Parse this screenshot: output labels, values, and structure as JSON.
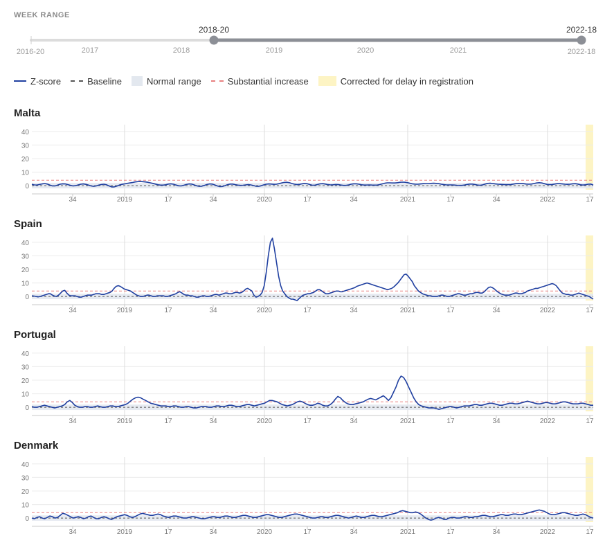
{
  "week_range": {
    "title": "WEEK RANGE",
    "start_label": "2016-20",
    "end_label": "2022-18",
    "selected_start": "2018-20",
    "selected_end": "2022-18",
    "year_labels": [
      "2017",
      "2018",
      "2019",
      "2020",
      "2021"
    ]
  },
  "legend": {
    "zscore": "Z-score",
    "baseline": "Baseline",
    "normal_range": "Normal range",
    "substantial_increase": "Substantial increase",
    "corrected": "Corrected for delay in registration"
  },
  "colors": {
    "zscore": "#1f3fa0",
    "baseline": "#555555",
    "normal_range": "#e3e8ef",
    "substantial": "#e88080",
    "corrected": "#fdf4c4",
    "slider_selected": "#8c8f96",
    "slider_track": "#dcdcdc"
  },
  "chart_data": [
    {
      "type": "line",
      "title": "Malta",
      "ylim": [
        -3,
        43
      ],
      "yticks": [
        0,
        10,
        20,
        30,
        40
      ],
      "x_tick_labels": [
        "34",
        "2019",
        "17",
        "34",
        "2020",
        "17",
        "34",
        "2021",
        "17",
        "34",
        "2022",
        "17"
      ],
      "baseline": 0,
      "normal_range": [
        -2,
        2
      ],
      "substantial_increase": 4,
      "corrected_weeks": "2022-17 to 2022-18",
      "series": [
        {
          "name": "Z-score",
          "x_week_start": "2018-20",
          "x_week_end": "2022-18",
          "values": [
            1.0,
            0.6,
            0.5,
            0.9,
            1.3,
            1.6,
            1.2,
            0.5,
            -0.2,
            -0.2,
            0.4,
            1.1,
            1.4,
            1.3,
            0.8,
            0.2,
            -0.2,
            0.0,
            0.6,
            1.1,
            1.3,
            1.0,
            0.4,
            -0.2,
            -0.5,
            -0.2,
            0.4,
            0.9,
            1.1,
            0.7,
            -0.2,
            -0.9,
            -0.9,
            -0.3,
            0.5,
            1.0,
            1.3,
            1.7,
            2.0,
            2.3,
            2.7,
            3.0,
            3.1,
            3.0,
            2.8,
            2.5,
            2.1,
            1.7,
            1.2,
            0.7,
            0.4,
            0.4,
            0.7,
            1.2,
            1.4,
            1.1,
            0.5,
            -0.1,
            -0.2,
            0.3,
            0.9,
            1.3,
            1.2,
            0.6,
            -0.1,
            -0.5,
            -0.4,
            0.2,
            0.9,
            1.3,
            1.2,
            0.6,
            -0.2,
            -0.7,
            -0.6,
            0.0,
            0.8,
            1.2,
            1.2,
            0.8,
            0.4,
            0.2,
            0.3,
            0.6,
            0.8,
            0.6,
            0.1,
            -0.4,
            -0.5,
            -0.1,
            0.6,
            1.1,
            1.3,
            1.2,
            1.0,
            1.1,
            1.5,
            2.0,
            2.4,
            2.5,
            2.2,
            1.6,
            1.1,
            0.8,
            1.0,
            1.4,
            1.7,
            1.4,
            0.8,
            0.3,
            0.4,
            0.9,
            1.4,
            1.5,
            1.2,
            0.8,
            0.6,
            0.7,
            0.9,
            0.8,
            0.5,
            0.2,
            0.2,
            0.6,
            1.1,
            1.4,
            1.4,
            1.1,
            0.7,
            0.5,
            0.5,
            0.6,
            0.5,
            0.4,
            0.4,
            0.8,
            1.3,
            1.8,
            2.1,
            2.1,
            2.0,
            2.0,
            2.2,
            2.5,
            2.6,
            2.5,
            2.2,
            1.7,
            1.3,
            1.1,
            1.1,
            1.3,
            1.5,
            1.6,
            1.6,
            1.7,
            1.8,
            1.7,
            1.5,
            1.1,
            0.8,
            0.6,
            0.6,
            0.6,
            0.5,
            0.3,
            0.2,
            0.2,
            0.5,
            0.9,
            1.2,
            1.2,
            0.9,
            0.5,
            0.3,
            0.6,
            1.2,
            1.7,
            1.8,
            1.6,
            1.3,
            1.1,
            1.0,
            0.9,
            0.8,
            0.8,
            0.9,
            1.2,
            1.5,
            1.7,
            1.7,
            1.5,
            1.2,
            1.1,
            1.2,
            1.6,
            2.0,
            2.2,
            2.0,
            1.5,
            1.0,
            0.8,
            0.9,
            1.2,
            1.5,
            1.5,
            1.3,
            1.1,
            1.0,
            1.1,
            1.4,
            1.5,
            1.2,
            0.7,
            0.5,
            0.7,
            1.1,
            1.2,
            0.4
          ]
        }
      ]
    },
    {
      "type": "line",
      "title": "Spain",
      "ylim": [
        -3,
        43
      ],
      "yticks": [
        0,
        10,
        20,
        30,
        40
      ],
      "x_tick_labels": [
        "34",
        "2019",
        "17",
        "34",
        "2020",
        "17",
        "34",
        "2021",
        "17",
        "34",
        "2022",
        "17"
      ],
      "baseline": 0,
      "normal_range": [
        -2,
        2
      ],
      "substantial_increase": 4,
      "corrected_weeks": "2022-17 to 2022-18",
      "series": [
        {
          "name": "Z-score",
          "x_week_start": "2018-20",
          "x_week_end": "2022-18",
          "values": [
            0.5,
            0.3,
            0.0,
            -0.3,
            0.0,
            0.5,
            1.0,
            1.5,
            2.0,
            2.0,
            1.0,
            0.3,
            0.0,
            1.0,
            2.5,
            4.0,
            4.5,
            2.5,
            1.0,
            0.5,
            0.5,
            0.5,
            0.0,
            -0.5,
            -0.5,
            0.0,
            0.5,
            1.0,
            1.0,
            1.0,
            1.5,
            2.0,
            2.0,
            2.0,
            1.5,
            1.5,
            2.0,
            2.5,
            3.0,
            4.0,
            6.0,
            7.5,
            8.0,
            7.5,
            6.5,
            5.5,
            5.0,
            4.5,
            4.0,
            3.0,
            2.0,
            1.0,
            0.5,
            0.0,
            0.0,
            0.5,
            1.0,
            1.0,
            0.5,
            0.0,
            0.0,
            0.5,
            0.5,
            0.5,
            0.5,
            0.0,
            0.0,
            0.5,
            1.0,
            1.5,
            2.0,
            3.0,
            3.5,
            2.5,
            1.5,
            1.0,
            1.0,
            0.5,
            0.5,
            0.0,
            -0.5,
            -0.5,
            0.0,
            0.5,
            0.5,
            0.0,
            0.0,
            0.5,
            1.0,
            1.5,
            1.5,
            1.0,
            1.5,
            2.0,
            2.5,
            2.5,
            2.0,
            2.0,
            2.5,
            3.0,
            3.0,
            2.5,
            3.0,
            4.0,
            5.5,
            6.0,
            5.0,
            4.0,
            1.0,
            -0.5,
            0.0,
            1.0,
            3.0,
            8.0,
            18.0,
            30.0,
            40.0,
            43.0,
            35.0,
            25.0,
            15.0,
            8.0,
            4.0,
            2.0,
            0.0,
            -1.0,
            -2.0,
            -2.0,
            -2.5,
            -3.0,
            -1.5,
            0.0,
            1.0,
            1.5,
            2.0,
            2.0,
            2.5,
            3.0,
            4.0,
            5.0,
            5.0,
            4.0,
            3.0,
            2.0,
            2.0,
            2.5,
            3.0,
            3.5,
            4.0,
            4.0,
            3.5,
            3.5,
            4.0,
            4.5,
            5.0,
            5.5,
            6.0,
            6.5,
            7.5,
            8.0,
            8.5,
            9.0,
            9.5,
            10.0,
            9.5,
            9.0,
            8.5,
            8.0,
            7.5,
            7.0,
            6.5,
            6.0,
            5.5,
            5.0,
            5.5,
            6.0,
            7.0,
            8.5,
            10.0,
            12.0,
            14.0,
            16.0,
            16.5,
            15.0,
            13.0,
            11.0,
            8.0,
            6.0,
            4.0,
            3.0,
            2.0,
            1.5,
            1.0,
            0.5,
            0.5,
            0.0,
            0.0,
            0.0,
            0.5,
            1.0,
            1.0,
            0.5,
            0.0,
            0.0,
            0.5,
            1.0,
            1.5,
            2.0,
            2.0,
            1.5,
            1.0,
            1.0,
            1.5,
            2.0,
            2.0,
            2.5,
            3.0,
            3.0,
            2.5,
            2.5,
            3.5,
            5.0,
            6.5,
            7.0,
            6.5,
            5.5,
            4.0,
            3.0,
            2.0,
            1.5,
            1.0,
            1.0,
            1.0,
            1.5,
            2.0,
            2.5,
            2.5,
            2.0,
            2.0,
            2.5,
            3.0,
            4.0,
            4.5,
            5.0,
            5.5,
            6.0,
            6.0,
            6.5,
            7.0,
            7.5,
            8.0,
            8.5,
            9.0,
            9.5,
            9.0,
            8.0,
            6.0,
            4.0,
            2.5,
            2.0,
            1.5,
            1.5,
            1.0,
            1.0,
            1.5,
            2.0,
            2.5,
            2.0,
            1.5,
            1.0,
            0.5,
            0.0,
            -1.0,
            -2.0
          ]
        }
      ]
    },
    {
      "type": "line",
      "title": "Portugal",
      "ylim": [
        -3,
        43
      ],
      "yticks": [
        0,
        10,
        20,
        30,
        40
      ],
      "x_tick_labels": [
        "34",
        "2019",
        "17",
        "34",
        "2020",
        "17",
        "34",
        "2021",
        "17",
        "34",
        "2022",
        "17"
      ],
      "baseline": 0,
      "normal_range": [
        -2,
        2
      ],
      "substantial_increase": 4,
      "corrected_weeks": "2022-17 to 2022-18",
      "series": [
        {
          "name": "Z-score",
          "x_week_start": "2018-20",
          "x_week_end": "2022-18",
          "values": [
            0.5,
            0.0,
            0.0,
            0.5,
            1.0,
            1.5,
            1.0,
            0.5,
            0.0,
            -0.5,
            0.0,
            0.5,
            1.0,
            2.0,
            4.0,
            5.0,
            3.5,
            1.5,
            0.5,
            0.0,
            0.0,
            0.5,
            0.5,
            0.0,
            0.0,
            0.5,
            1.0,
            0.5,
            0.0,
            0.0,
            0.5,
            1.0,
            1.0,
            0.5,
            0.5,
            1.0,
            1.5,
            2.0,
            3.0,
            4.5,
            6.0,
            7.0,
            7.5,
            7.0,
            6.0,
            5.0,
            4.0,
            3.0,
            2.5,
            2.0,
            1.5,
            1.0,
            1.0,
            1.0,
            0.5,
            0.5,
            1.0,
            1.0,
            0.5,
            0.0,
            0.0,
            0.5,
            0.5,
            0.0,
            -0.5,
            -0.5,
            0.0,
            0.5,
            0.5,
            0.5,
            0.0,
            0.0,
            0.5,
            1.0,
            1.0,
            0.5,
            0.5,
            1.0,
            1.5,
            1.5,
            1.0,
            0.5,
            0.5,
            1.0,
            1.5,
            2.0,
            2.0,
            1.5,
            1.0,
            1.5,
            2.0,
            2.5,
            3.0,
            4.0,
            5.0,
            5.0,
            4.5,
            4.0,
            3.0,
            2.0,
            1.5,
            1.0,
            1.5,
            2.0,
            3.0,
            4.0,
            4.5,
            4.0,
            3.0,
            2.0,
            1.5,
            1.5,
            2.0,
            3.0,
            2.5,
            1.5,
            1.0,
            1.0,
            2.0,
            3.5,
            6.0,
            8.0,
            7.0,
            5.0,
            3.5,
            2.5,
            2.0,
            2.0,
            2.5,
            3.0,
            3.5,
            4.0,
            5.0,
            6.0,
            6.5,
            6.0,
            5.5,
            6.5,
            7.5,
            8.5,
            7.0,
            5.0,
            7.0,
            11.0,
            15.0,
            20.0,
            23.0,
            22.0,
            19.0,
            15.0,
            11.0,
            7.0,
            4.0,
            2.0,
            1.0,
            0.5,
            0.0,
            -0.5,
            -0.5,
            -0.5,
            -1.0,
            -1.5,
            -1.0,
            -0.5,
            0.0,
            0.5,
            0.5,
            0.0,
            -0.5,
            0.0,
            0.5,
            1.0,
            1.0,
            1.0,
            1.5,
            2.0,
            2.0,
            1.5,
            1.5,
            2.0,
            2.5,
            3.0,
            3.0,
            2.5,
            2.0,
            1.5,
            1.5,
            2.0,
            2.5,
            3.0,
            3.0,
            2.5,
            2.5,
            3.0,
            3.5,
            4.0,
            4.5,
            4.0,
            3.5,
            3.0,
            2.5,
            2.5,
            3.0,
            3.5,
            3.5,
            3.0,
            2.5,
            2.5,
            3.0,
            3.5,
            4.0,
            4.0,
            3.5,
            3.0,
            2.5,
            2.5,
            2.5,
            3.0,
            3.0,
            2.5,
            2.0,
            1.5,
            1.5
          ]
        }
      ]
    },
    {
      "type": "line",
      "title": "Denmark",
      "ylim": [
        -3,
        43
      ],
      "yticks": [
        0,
        10,
        20,
        30,
        40
      ],
      "x_tick_labels": [
        "34",
        "2019",
        "17",
        "34",
        "2020",
        "17",
        "34",
        "2021",
        "17",
        "34",
        "2022",
        "17"
      ],
      "baseline": 0,
      "normal_range": [
        -2,
        2
      ],
      "substantial_increase": 4,
      "corrected_weeks": "2022-17 to 2022-18",
      "series": [
        {
          "name": "Z-score",
          "x_week_start": "2018-20",
          "x_week_end": "2022-18",
          "values": [
            0.0,
            -0.5,
            0.5,
            1.0,
            0.0,
            -0.5,
            0.5,
            1.5,
            1.0,
            0.0,
            0.5,
            2.0,
            3.5,
            3.0,
            2.0,
            1.0,
            0.0,
            0.5,
            1.0,
            0.5,
            -0.5,
            0.0,
            1.0,
            1.5,
            0.5,
            -0.5,
            -0.5,
            0.5,
            1.0,
            0.5,
            -0.5,
            -1.0,
            0.0,
            1.0,
            1.5,
            2.0,
            2.5,
            2.0,
            1.0,
            0.5,
            1.0,
            2.0,
            3.0,
            3.5,
            3.0,
            2.5,
            2.0,
            2.0,
            2.5,
            3.0,
            2.5,
            1.5,
            1.0,
            0.5,
            1.0,
            1.5,
            1.5,
            1.0,
            0.5,
            0.0,
            0.0,
            0.5,
            1.0,
            1.0,
            0.5,
            0.0,
            -0.5,
            -0.5,
            0.0,
            0.5,
            1.0,
            1.0,
            0.5,
            0.5,
            1.0,
            1.5,
            1.5,
            1.0,
            0.5,
            0.5,
            1.0,
            1.5,
            2.0,
            2.0,
            1.5,
            1.0,
            0.5,
            0.5,
            1.0,
            1.5,
            2.0,
            2.5,
            2.5,
            2.0,
            1.5,
            1.0,
            0.5,
            0.5,
            1.0,
            1.5,
            2.0,
            2.5,
            3.0,
            3.0,
            2.5,
            2.0,
            1.5,
            1.0,
            0.5,
            0.0,
            0.0,
            0.5,
            1.0,
            1.0,
            0.5,
            0.5,
            1.0,
            1.5,
            2.0,
            2.0,
            1.5,
            1.0,
            0.5,
            0.0,
            0.5,
            1.0,
            1.5,
            1.0,
            0.5,
            0.5,
            1.0,
            1.5,
            2.0,
            2.0,
            1.5,
            1.0,
            1.0,
            1.5,
            2.0,
            2.5,
            3.0,
            3.5,
            4.0,
            5.0,
            5.5,
            5.0,
            4.5,
            4.0,
            4.0,
            4.5,
            4.0,
            3.0,
            1.5,
            0.0,
            -1.0,
            -1.5,
            -1.0,
            0.0,
            0.5,
            0.0,
            -1.0,
            -1.0,
            0.0,
            0.5,
            0.5,
            0.0,
            0.0,
            0.5,
            1.0,
            1.0,
            0.5,
            0.5,
            1.0,
            1.0,
            1.5,
            2.0,
            2.0,
            1.5,
            1.0,
            1.0,
            1.5,
            2.0,
            2.5,
            2.5,
            2.0,
            2.0,
            2.5,
            3.0,
            3.0,
            2.5,
            2.5,
            3.0,
            3.5,
            4.0,
            4.5,
            5.0,
            5.5,
            6.0,
            5.5,
            5.0,
            4.0,
            3.0,
            2.5,
            2.5,
            3.0,
            3.5,
            4.0,
            4.0,
            3.5,
            3.0,
            2.5,
            2.0,
            2.0,
            2.5,
            3.0,
            2.5,
            1.5,
            0.5,
            0.0
          ]
        }
      ]
    }
  ]
}
